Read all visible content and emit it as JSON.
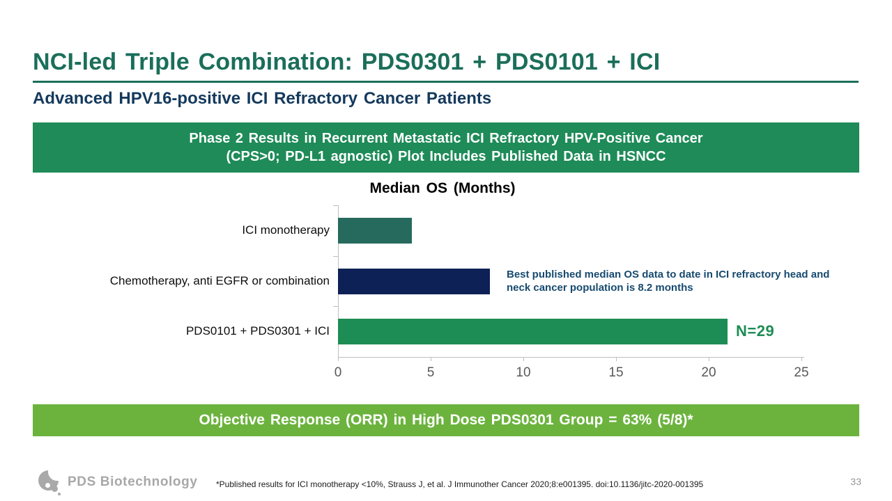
{
  "slide": {
    "title": "NCI-led Triple Combination: PDS0301 + PDS0101 + ICI",
    "subtitle": "Advanced HPV16-positive ICI Refractory Cancer Patients",
    "page_number": "33"
  },
  "banners": {
    "top_line1": "Phase 2 Results in Recurrent Metastatic ICI Refractory HPV-Positive Cancer",
    "top_line2": "(CPS>0; PD-L1 agnostic) Plot Includes Published Data in HSNCC",
    "bottom": "Objective Response (ORR) in High Dose PDS0301 Group = 63% (5/8)*"
  },
  "chart_data": {
    "type": "bar",
    "orientation": "horizontal",
    "title": "Median OS (Months)",
    "categories": [
      "ICI monotherapy",
      "Chemotherapy, anti EGFR or combination",
      "PDS0101 + PDS0301 + ICI"
    ],
    "values": [
      4,
      8.2,
      21
    ],
    "bar_colors": [
      "#266A5E",
      "#0E2156",
      "#1E8C55"
    ],
    "xlim": [
      0,
      25
    ],
    "x_ticks": [
      "0",
      "5",
      "10",
      "15",
      "20",
      "25"
    ],
    "xlabel": "",
    "ylabel": "",
    "grid": false,
    "legend": "none",
    "annotation": "Best published median OS data to date in ICI refractory head and neck cancer population is 8.2 months",
    "n_label": "N=29"
  },
  "footer": {
    "logo_text": "PDS Biotechnology",
    "footnote": "*Published results for ICI monotherapy <10%, Strauss J, et al. J Immunother Cancer 2020;8:e001395. doi:10.1136/jitc-2020-001395"
  },
  "colors": {
    "title_teal": "#1B6E5A",
    "subtitle_navy": "#14395C",
    "banner_green": "#1E8B58",
    "banner_light_green": "#6CB33E",
    "annotation_navy": "#174A6F",
    "n_label_green": "#1E8C55",
    "axis_gray": "#BFBFBF",
    "tick_label_gray": "#595959"
  }
}
